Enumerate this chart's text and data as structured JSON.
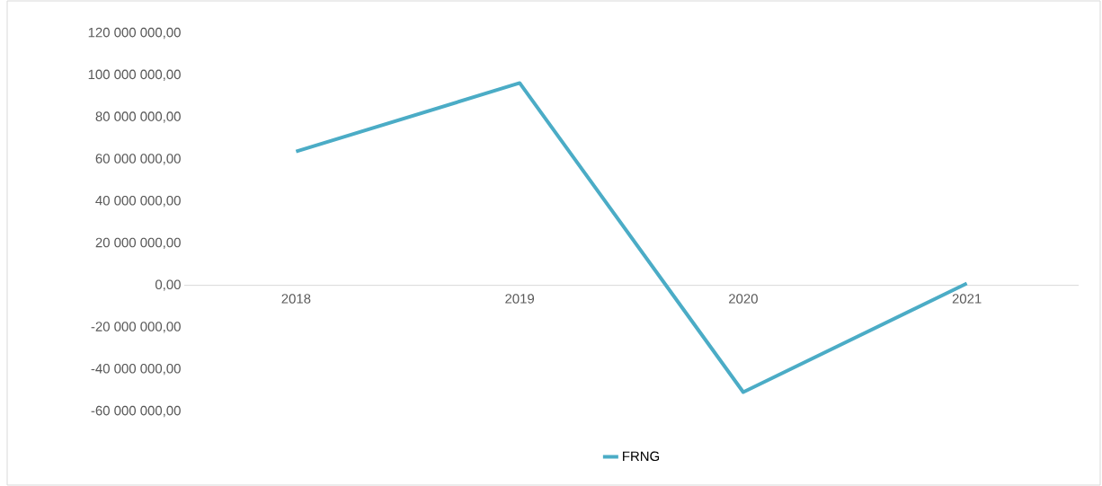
{
  "chart_data": {
    "type": "line",
    "categories": [
      "2018",
      "2019",
      "2020",
      "2021"
    ],
    "series": [
      {
        "name": "FRNG",
        "color": "#4bacc6",
        "values": [
          63700000,
          96300000,
          -50800000,
          900000
        ]
      }
    ],
    "ylim": [
      -60000000,
      120000000
    ],
    "yticks": [
      {
        "value": -60000000,
        "label": "-60 000 000,00"
      },
      {
        "value": -40000000,
        "label": "-40 000 000,00"
      },
      {
        "value": -20000000,
        "label": "-20 000 000,00"
      },
      {
        "value": 0,
        "label": "0,00"
      },
      {
        "value": 20000000,
        "label": "20 000 000,00"
      },
      {
        "value": 40000000,
        "label": "40 000 000,00"
      },
      {
        "value": 60000000,
        "label": "60 000 000,00"
      },
      {
        "value": 80000000,
        "label": "80 000 000,00"
      },
      {
        "value": 100000000,
        "label": "100 000 000,00"
      },
      {
        "value": 120000000,
        "label": "120 000 000,00"
      }
    ],
    "grid": false,
    "legend": "bottom",
    "marker": "none",
    "line_style": "solid"
  }
}
